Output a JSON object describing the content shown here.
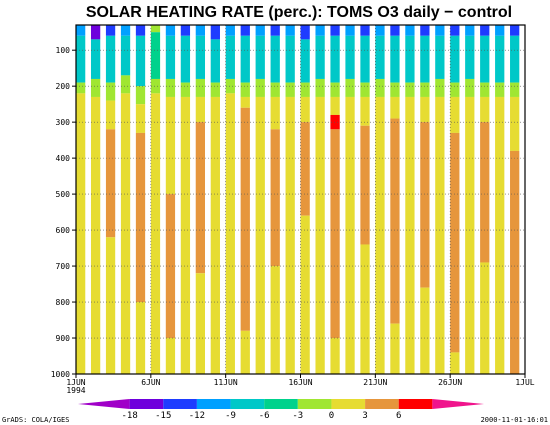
{
  "chart_data": {
    "type": "heatmap",
    "title": "SOLAR HEATING RATE (perc.): TOMS O3 daily − control",
    "x_ticks": [
      "1JUN",
      "6JUN",
      "11JUN",
      "16JUN",
      "21JUN",
      "26JUN",
      "1JUL"
    ],
    "x_year_label": "1994",
    "x_range": [
      "1994-06-01",
      "1994-07-01"
    ],
    "y_ticks": [
      100,
      200,
      300,
      400,
      500,
      600,
      700,
      800,
      900,
      1000
    ],
    "y_range": [
      1000,
      30
    ],
    "y_axis": "pressure (hPa), top down",
    "grid": "dotted",
    "colorbar": {
      "labels": [
        "-18",
        "-15",
        "-12",
        "-9",
        "-6",
        "-3",
        "0",
        "3",
        "6"
      ],
      "colors": [
        "#a000c8",
        "#6e00dc",
        "#1e3cff",
        "#00a0ff",
        "#00c8c8",
        "#00d28c",
        "#a0e632",
        "#e6dc32",
        "#e6963c",
        "#ff0000",
        "#f0148c"
      ]
    },
    "columns": [
      {
        "day": 0,
        "bands": [
          [
            30,
            60,
            "#00a0ff"
          ],
          [
            60,
            190,
            "#00c8c8"
          ],
          [
            190,
            220,
            "#a0e632"
          ],
          [
            220,
            1000,
            "#e6dc32"
          ]
        ]
      },
      {
        "day": 1,
        "bands": [
          [
            30,
            70,
            "#6e00dc"
          ],
          [
            70,
            180,
            "#00c8c8"
          ],
          [
            180,
            230,
            "#a0e632"
          ],
          [
            230,
            1000,
            "#e6dc32"
          ]
        ]
      },
      {
        "day": 2,
        "bands": [
          [
            30,
            60,
            "#1e3cff"
          ],
          [
            60,
            190,
            "#00c8c8"
          ],
          [
            190,
            240,
            "#a0e632"
          ],
          [
            240,
            320,
            "#e6dc32"
          ],
          [
            320,
            620,
            "#e6963c"
          ],
          [
            620,
            1000,
            "#e6dc32"
          ]
        ]
      },
      {
        "day": 3,
        "bands": [
          [
            30,
            60,
            "#00a0ff"
          ],
          [
            60,
            170,
            "#00c8c8"
          ],
          [
            170,
            220,
            "#a0e632"
          ],
          [
            220,
            1000,
            "#e6dc32"
          ]
        ]
      },
      {
        "day": 4,
        "bands": [
          [
            30,
            60,
            "#1e3cff"
          ],
          [
            60,
            200,
            "#00c8c8"
          ],
          [
            200,
            250,
            "#a0e632"
          ],
          [
            250,
            330,
            "#e6dc32"
          ],
          [
            330,
            800,
            "#e6963c"
          ],
          [
            800,
            1000,
            "#e6dc32"
          ]
        ]
      },
      {
        "day": 5,
        "bands": [
          [
            30,
            50,
            "#a0e632"
          ],
          [
            50,
            180,
            "#00d28c"
          ],
          [
            180,
            220,
            "#a0e632"
          ],
          [
            220,
            1000,
            "#e6dc32"
          ]
        ]
      },
      {
        "day": 6,
        "bands": [
          [
            30,
            60,
            "#00a0ff"
          ],
          [
            60,
            180,
            "#00c8c8"
          ],
          [
            180,
            230,
            "#a0e632"
          ],
          [
            230,
            500,
            "#e6dc32"
          ],
          [
            500,
            900,
            "#e6963c"
          ],
          [
            900,
            1000,
            "#e6dc32"
          ]
        ]
      },
      {
        "day": 7,
        "bands": [
          [
            30,
            60,
            "#1e3cff"
          ],
          [
            60,
            190,
            "#00c8c8"
          ],
          [
            190,
            230,
            "#a0e632"
          ],
          [
            230,
            1000,
            "#e6dc32"
          ]
        ]
      },
      {
        "day": 8,
        "bands": [
          [
            30,
            60,
            "#00a0ff"
          ],
          [
            60,
            180,
            "#00c8c8"
          ],
          [
            180,
            230,
            "#a0e632"
          ],
          [
            230,
            300,
            "#e6dc32"
          ],
          [
            300,
            720,
            "#e6963c"
          ],
          [
            720,
            1000,
            "#e6dc32"
          ]
        ]
      },
      {
        "day": 9,
        "bands": [
          [
            30,
            70,
            "#1e3cff"
          ],
          [
            70,
            190,
            "#00c8c8"
          ],
          [
            190,
            230,
            "#a0e632"
          ],
          [
            230,
            1000,
            "#e6dc32"
          ]
        ]
      },
      {
        "day": 10,
        "bands": [
          [
            30,
            60,
            "#00a0ff"
          ],
          [
            60,
            180,
            "#00c8c8"
          ],
          [
            180,
            220,
            "#a0e632"
          ],
          [
            220,
            1000,
            "#e6dc32"
          ]
        ]
      },
      {
        "day": 11,
        "bands": [
          [
            30,
            60,
            "#1e3cff"
          ],
          [
            60,
            190,
            "#00c8c8"
          ],
          [
            190,
            230,
            "#a0e632"
          ],
          [
            230,
            260,
            "#e6dc32"
          ],
          [
            260,
            880,
            "#e6963c"
          ],
          [
            880,
            1000,
            "#e6dc32"
          ]
        ]
      },
      {
        "day": 12,
        "bands": [
          [
            30,
            60,
            "#00a0ff"
          ],
          [
            60,
            180,
            "#00c8c8"
          ],
          [
            180,
            230,
            "#a0e632"
          ],
          [
            230,
            1000,
            "#e6dc32"
          ]
        ]
      },
      {
        "day": 13,
        "bands": [
          [
            30,
            60,
            "#1e3cff"
          ],
          [
            60,
            190,
            "#00c8c8"
          ],
          [
            190,
            230,
            "#a0e632"
          ],
          [
            230,
            320,
            "#e6dc32"
          ],
          [
            320,
            700,
            "#e6963c"
          ],
          [
            700,
            1000,
            "#e6dc32"
          ]
        ]
      },
      {
        "day": 14,
        "bands": [
          [
            30,
            60,
            "#00a0ff"
          ],
          [
            60,
            190,
            "#00c8c8"
          ],
          [
            190,
            230,
            "#a0e632"
          ],
          [
            230,
            1000,
            "#e6dc32"
          ]
        ]
      },
      {
        "day": 15,
        "bands": [
          [
            30,
            70,
            "#1e3cff"
          ],
          [
            70,
            190,
            "#00c8c8"
          ],
          [
            190,
            230,
            "#a0e632"
          ],
          [
            230,
            300,
            "#e6dc32"
          ],
          [
            300,
            560,
            "#e6963c"
          ],
          [
            560,
            1000,
            "#e6dc32"
          ]
        ]
      },
      {
        "day": 16,
        "bands": [
          [
            30,
            60,
            "#00a0ff"
          ],
          [
            60,
            180,
            "#00c8c8"
          ],
          [
            180,
            230,
            "#a0e632"
          ],
          [
            230,
            1000,
            "#e6dc32"
          ]
        ]
      },
      {
        "day": 17,
        "bands": [
          [
            30,
            60,
            "#1e3cff"
          ],
          [
            60,
            190,
            "#00c8c8"
          ],
          [
            190,
            230,
            "#a0e632"
          ],
          [
            230,
            280,
            "#e6dc32"
          ],
          [
            280,
            320,
            "#ff0000"
          ],
          [
            320,
            900,
            "#e6963c"
          ],
          [
            900,
            1000,
            "#e6dc32"
          ]
        ]
      },
      {
        "day": 18,
        "bands": [
          [
            30,
            60,
            "#00a0ff"
          ],
          [
            60,
            180,
            "#00c8c8"
          ],
          [
            180,
            230,
            "#a0e632"
          ],
          [
            230,
            1000,
            "#e6dc32"
          ]
        ]
      },
      {
        "day": 19,
        "bands": [
          [
            30,
            60,
            "#1e3cff"
          ],
          [
            60,
            190,
            "#00c8c8"
          ],
          [
            190,
            230,
            "#a0e632"
          ],
          [
            230,
            310,
            "#e6dc32"
          ],
          [
            310,
            640,
            "#e6963c"
          ],
          [
            640,
            1000,
            "#e6dc32"
          ]
        ]
      },
      {
        "day": 20,
        "bands": [
          [
            30,
            60,
            "#00a0ff"
          ],
          [
            60,
            180,
            "#00c8c8"
          ],
          [
            180,
            230,
            "#a0e632"
          ],
          [
            230,
            1000,
            "#e6dc32"
          ]
        ]
      },
      {
        "day": 21,
        "bands": [
          [
            30,
            60,
            "#1e3cff"
          ],
          [
            60,
            190,
            "#00c8c8"
          ],
          [
            190,
            230,
            "#a0e632"
          ],
          [
            230,
            290,
            "#e6dc32"
          ],
          [
            290,
            860,
            "#e6963c"
          ],
          [
            860,
            1000,
            "#e6dc32"
          ]
        ]
      },
      {
        "day": 22,
        "bands": [
          [
            30,
            60,
            "#00a0ff"
          ],
          [
            60,
            190,
            "#00c8c8"
          ],
          [
            190,
            230,
            "#a0e632"
          ],
          [
            230,
            1000,
            "#e6dc32"
          ]
        ]
      },
      {
        "day": 23,
        "bands": [
          [
            30,
            60,
            "#1e3cff"
          ],
          [
            60,
            190,
            "#00c8c8"
          ],
          [
            190,
            230,
            "#a0e632"
          ],
          [
            230,
            300,
            "#e6dc32"
          ],
          [
            300,
            760,
            "#e6963c"
          ],
          [
            760,
            1000,
            "#e6dc32"
          ]
        ]
      },
      {
        "day": 24,
        "bands": [
          [
            30,
            60,
            "#00a0ff"
          ],
          [
            60,
            180,
            "#00c8c8"
          ],
          [
            180,
            230,
            "#a0e632"
          ],
          [
            230,
            1000,
            "#e6dc32"
          ]
        ]
      },
      {
        "day": 25,
        "bands": [
          [
            30,
            60,
            "#1e3cff"
          ],
          [
            60,
            190,
            "#00c8c8"
          ],
          [
            190,
            230,
            "#a0e632"
          ],
          [
            230,
            330,
            "#e6dc32"
          ],
          [
            330,
            940,
            "#e6963c"
          ],
          [
            940,
            1000,
            "#e6dc32"
          ]
        ]
      },
      {
        "day": 26,
        "bands": [
          [
            30,
            60,
            "#00a0ff"
          ],
          [
            60,
            180,
            "#00c8c8"
          ],
          [
            180,
            230,
            "#a0e632"
          ],
          [
            230,
            1000,
            "#e6dc32"
          ]
        ]
      },
      {
        "day": 27,
        "bands": [
          [
            30,
            60,
            "#1e3cff"
          ],
          [
            60,
            190,
            "#00c8c8"
          ],
          [
            190,
            230,
            "#a0e632"
          ],
          [
            230,
            300,
            "#e6dc32"
          ],
          [
            300,
            690,
            "#e6963c"
          ],
          [
            690,
            1000,
            "#e6dc32"
          ]
        ]
      },
      {
        "day": 28,
        "bands": [
          [
            30,
            60,
            "#00a0ff"
          ],
          [
            60,
            190,
            "#00c8c8"
          ],
          [
            190,
            230,
            "#a0e632"
          ],
          [
            230,
            1000,
            "#e6dc32"
          ]
        ]
      },
      {
        "day": 29,
        "bands": [
          [
            30,
            60,
            "#1e3cff"
          ],
          [
            60,
            190,
            "#00c8c8"
          ],
          [
            190,
            230,
            "#a0e632"
          ],
          [
            230,
            380,
            "#e6dc32"
          ],
          [
            380,
            1000,
            "#e6963c"
          ]
        ]
      }
    ]
  },
  "footer": {
    "left": "GrADS: COLA/IGES",
    "right": "2000-11-01-16:01"
  }
}
